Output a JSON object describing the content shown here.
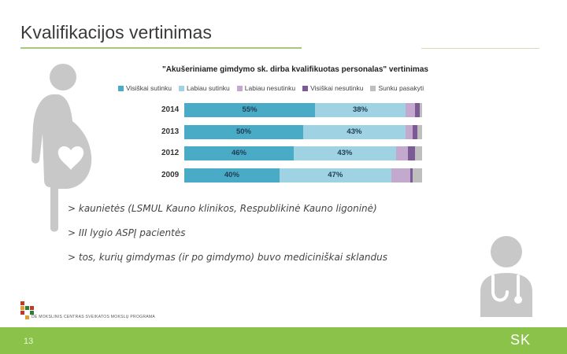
{
  "slide": {
    "title": "Kvalifikacijos vertinimas",
    "page_number": "13",
    "footer_logo_text": "SK",
    "partner_text": "DE MOKSLINIS CENTRAS SVEIKATOS MOKSLŲ PROGRAMA"
  },
  "colors": {
    "accent": "#8bc34a",
    "series": [
      "#4aabc7",
      "#9fd2e2",
      "#c4a9cf",
      "#7b5b95",
      "#bfbfbf"
    ]
  },
  "icons": [
    "pregnant-woman-icon",
    "heart-icon",
    "doctor-icon",
    "stethoscope-icon"
  ],
  "chart_data": {
    "type": "bar",
    "orientation": "horizontal",
    "stacked": true,
    "title": "\"Akušeriniame gimdymo sk. dirba kvalifikuotas personalas\" vertinimas",
    "categories": [
      "2014",
      "2013",
      "2012",
      "2009"
    ],
    "series": [
      {
        "name": "Visiškai sutinku",
        "values": [
          55,
          50,
          46,
          40
        ],
        "labels": [
          "55%",
          "50%",
          "46%",
          "40%"
        ]
      },
      {
        "name": "Labiau sutinku",
        "values": [
          38,
          43,
          43,
          47
        ],
        "labels": [
          "38%",
          "43%",
          "43%",
          "47%"
        ]
      },
      {
        "name": "Labiau nesutinku",
        "values": [
          4,
          3,
          5,
          8
        ],
        "labels": [
          "",
          "",
          "",
          ""
        ]
      },
      {
        "name": "Visiškai nesutinku",
        "values": [
          2,
          2,
          3,
          1
        ],
        "labels": [
          "",
          "",
          "",
          ""
        ]
      },
      {
        "name": "Sunku pasakyti",
        "values": [
          1,
          2,
          3,
          4
        ],
        "labels": [
          "",
          "",
          "",
          ""
        ]
      }
    ],
    "xlim": [
      0,
      100
    ],
    "legend_position": "top",
    "grid": false
  },
  "bullets": [
    "> kaunietės (LSMUL Kauno klinikos, Respublikinė Kauno ligoninė)",
    "> III lygio ASPĮ pacientės",
    "> tos, kurių gimdymas (ir po gimdymo) buvo mediciniškai sklandus"
  ]
}
